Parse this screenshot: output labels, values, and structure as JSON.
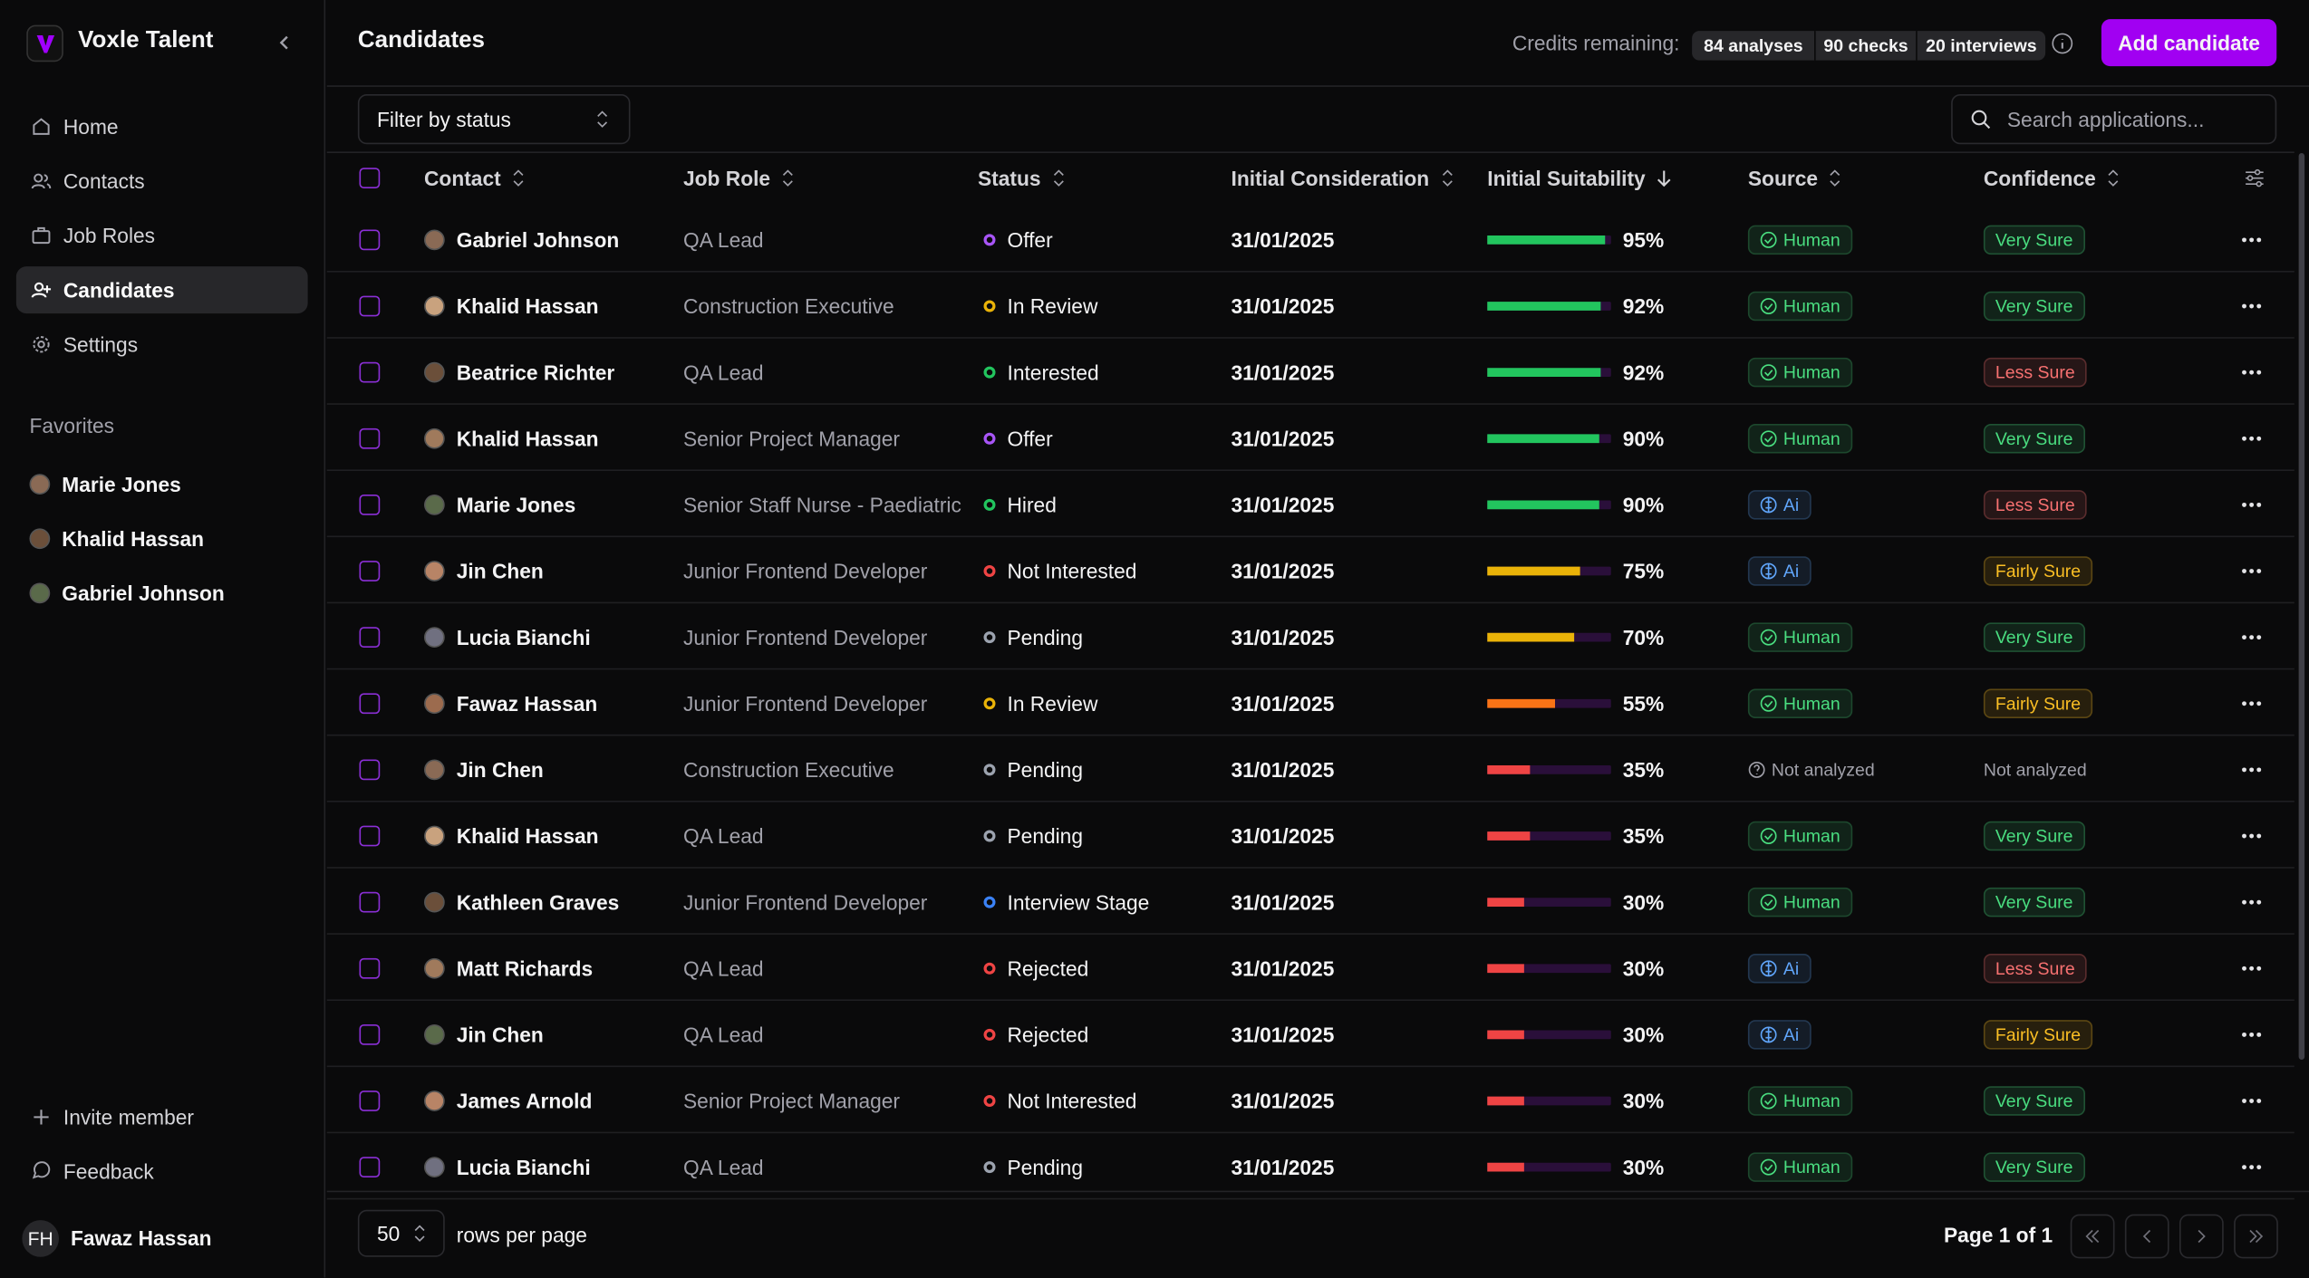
{
  "app": {
    "name": "Voxle Talent"
  },
  "nav": [
    "Home",
    "Contacts",
    "Job Roles",
    "Candidates",
    "Settings"
  ],
  "favorites": {
    "title": "Favorites",
    "items": [
      "Marie Jones",
      "Khalid Hassan",
      "Gabriel Johnson"
    ]
  },
  "sidebar_footer": [
    "Invite member",
    "Feedback"
  ],
  "user": {
    "initials": "FH",
    "name": "Fawaz Hassan"
  },
  "header": {
    "title": "Candidates",
    "credits_label": "Credits remaining:",
    "credits": [
      "84 analyses",
      "90 checks",
      "20 interviews"
    ],
    "button": "Add candidate"
  },
  "toolbar": {
    "filter": "Filter by status",
    "search_placeholder": "Search applications..."
  },
  "table": {
    "columns": [
      "Contact",
      "Job Role",
      "Status",
      "Initial Consideration",
      "Initial Suitability",
      "Source",
      "Confidence"
    ],
    "rows": [
      {
        "name": "Gabriel Johnson",
        "role": "QA Lead",
        "status": "Offer",
        "status_color": "#a855f7",
        "date": "31/01/2025",
        "suitability": 95,
        "suitability_label": "95%",
        "bar_color": "#22c55e",
        "source": "Human",
        "source_color": "#4ade80",
        "source_icon": "check",
        "confidence": "Very Sure",
        "confidence_color": "#4ade80"
      },
      {
        "name": "Khalid Hassan",
        "role": "Construction Executive",
        "status": "In Review",
        "status_color": "#eab308",
        "date": "31/01/2025",
        "suitability": 92,
        "suitability_label": "92%",
        "bar_color": "#22c55e",
        "source": "Human",
        "source_color": "#4ade80",
        "source_icon": "check",
        "confidence": "Very Sure",
        "confidence_color": "#4ade80"
      },
      {
        "name": "Beatrice Richter",
        "role": "QA Lead",
        "status": "Interested",
        "status_color": "#22c55e",
        "date": "31/01/2025",
        "suitability": 92,
        "suitability_label": "92%",
        "bar_color": "#22c55e",
        "source": "Human",
        "source_color": "#4ade80",
        "source_icon": "check",
        "confidence": "Less Sure",
        "confidence_color": "#f87171"
      },
      {
        "name": "Khalid Hassan",
        "role": "Senior Project Manager",
        "status": "Offer",
        "status_color": "#a855f7",
        "date": "31/01/2025",
        "suitability": 90,
        "suitability_label": "90%",
        "bar_color": "#22c55e",
        "source": "Human",
        "source_color": "#4ade80",
        "source_icon": "check",
        "confidence": "Very Sure",
        "confidence_color": "#4ade80"
      },
      {
        "name": "Marie Jones",
        "role": "Senior Staff Nurse - Paediatric",
        "status": "Hired",
        "status_color": "#22c55e",
        "date": "31/01/2025",
        "suitability": 90,
        "suitability_label": "90%",
        "bar_color": "#22c55e",
        "source": "Ai",
        "source_color": "#60a5fa",
        "source_icon": "ai",
        "confidence": "Less Sure",
        "confidence_color": "#f87171"
      },
      {
        "name": "Jin Chen",
        "role": "Junior Frontend Developer",
        "status": "Not Interested",
        "status_color": "#ef4444",
        "date": "31/01/2025",
        "suitability": 75,
        "suitability_label": "75%",
        "bar_color": "#eab308",
        "source": "Ai",
        "source_color": "#60a5fa",
        "source_icon": "ai",
        "confidence": "Fairly Sure",
        "confidence_color": "#fbbf24"
      },
      {
        "name": "Lucia Bianchi",
        "role": "Junior Frontend Developer",
        "status": "Pending",
        "status_color": "#9ca3af",
        "date": "31/01/2025",
        "suitability": 70,
        "suitability_label": "70%",
        "bar_color": "#eab308",
        "source": "Human",
        "source_color": "#4ade80",
        "source_icon": "check",
        "confidence": "Very Sure",
        "confidence_color": "#4ade80"
      },
      {
        "name": "Fawaz Hassan",
        "role": "Junior Frontend Developer",
        "status": "In Review",
        "status_color": "#eab308",
        "date": "31/01/2025",
        "suitability": 55,
        "suitability_label": "55%",
        "bar_color": "#f97316",
        "source": "Human",
        "source_color": "#4ade80",
        "source_icon": "check",
        "confidence": "Fairly Sure",
        "confidence_color": "#fbbf24"
      },
      {
        "name": "Jin Chen",
        "role": "Construction Executive",
        "status": "Pending",
        "status_color": "#9ca3af",
        "date": "31/01/2025",
        "suitability": 35,
        "suitability_label": "35%",
        "bar_color": "#ef4444",
        "source": "Not analyzed",
        "source_color": null,
        "source_icon": "question",
        "confidence": "Not analyzed",
        "confidence_color": null
      },
      {
        "name": "Khalid Hassan",
        "role": "QA Lead",
        "status": "Pending",
        "status_color": "#9ca3af",
        "date": "31/01/2025",
        "suitability": 35,
        "suitability_label": "35%",
        "bar_color": "#ef4444",
        "source": "Human",
        "source_color": "#4ade80",
        "source_icon": "check",
        "confidence": "Very Sure",
        "confidence_color": "#4ade80"
      },
      {
        "name": "Kathleen Graves",
        "role": "Junior Frontend Developer",
        "status": "Interview Stage",
        "status_color": "#3b82f6",
        "date": "31/01/2025",
        "suitability": 30,
        "suitability_label": "30%",
        "bar_color": "#ef4444",
        "source": "Human",
        "source_color": "#4ade80",
        "source_icon": "check",
        "confidence": "Very Sure",
        "confidence_color": "#4ade80"
      },
      {
        "name": "Matt Richards",
        "role": "QA Lead",
        "status": "Rejected",
        "status_color": "#ef4444",
        "date": "31/01/2025",
        "suitability": 30,
        "suitability_label": "30%",
        "bar_color": "#ef4444",
        "source": "Ai",
        "source_color": "#60a5fa",
        "source_icon": "ai",
        "confidence": "Less Sure",
        "confidence_color": "#f87171"
      },
      {
        "name": "Jin Chen",
        "role": "QA Lead",
        "status": "Rejected",
        "status_color": "#ef4444",
        "date": "31/01/2025",
        "suitability": 30,
        "suitability_label": "30%",
        "bar_color": "#ef4444",
        "source": "Ai",
        "source_color": "#60a5fa",
        "source_icon": "ai",
        "confidence": "Fairly Sure",
        "confidence_color": "#fbbf24"
      },
      {
        "name": "James Arnold",
        "role": "Senior Project Manager",
        "status": "Not Interested",
        "status_color": "#ef4444",
        "date": "31/01/2025",
        "suitability": 30,
        "suitability_label": "30%",
        "bar_color": "#ef4444",
        "source": "Human",
        "source_color": "#4ade80",
        "source_icon": "check",
        "confidence": "Very Sure",
        "confidence_color": "#4ade80"
      },
      {
        "name": "Lucia Bianchi",
        "role": "QA Lead",
        "status": "Pending",
        "status_color": "#9ca3af",
        "date": "31/01/2025",
        "suitability": 30,
        "suitability_label": "30%",
        "bar_color": "#ef4444",
        "source": "Human",
        "source_color": "#4ade80",
        "source_icon": "check",
        "confidence": "Very Sure",
        "confidence_color": "#4ade80"
      }
    ]
  },
  "pagination": {
    "rows_per_page_value": "50",
    "rows_per_page_label": "rows per page",
    "page": "Page 1 of 1"
  }
}
